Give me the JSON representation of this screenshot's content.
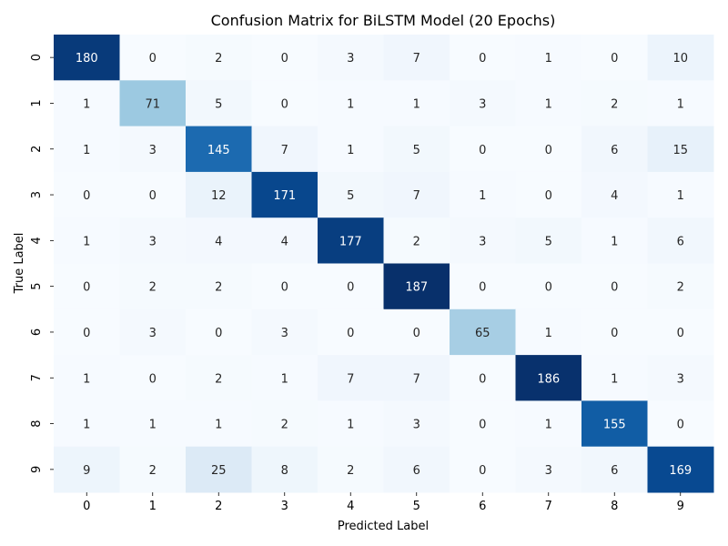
{
  "chart_data": {
    "type": "heatmap",
    "title": "Confusion Matrix for BiLSTM Model (20 Epochs)",
    "xlabel": "Predicted Label",
    "ylabel": "True Label",
    "x_categories": [
      "0",
      "1",
      "2",
      "3",
      "4",
      "5",
      "6",
      "7",
      "8",
      "9"
    ],
    "y_categories": [
      "0",
      "1",
      "2",
      "3",
      "4",
      "5",
      "6",
      "7",
      "8",
      "9"
    ],
    "colormap": "Blues",
    "value_range": [
      0,
      187
    ],
    "colorbar": false,
    "values": [
      [
        180,
        0,
        2,
        0,
        3,
        7,
        0,
        1,
        0,
        10
      ],
      [
        1,
        71,
        5,
        0,
        1,
        1,
        3,
        1,
        2,
        1
      ],
      [
        1,
        3,
        145,
        7,
        1,
        5,
        0,
        0,
        6,
        15
      ],
      [
        0,
        0,
        12,
        171,
        5,
        7,
        1,
        0,
        4,
        1
      ],
      [
        1,
        3,
        4,
        4,
        177,
        2,
        3,
        5,
        1,
        6
      ],
      [
        0,
        2,
        2,
        0,
        0,
        187,
        0,
        0,
        0,
        2
      ],
      [
        0,
        3,
        0,
        3,
        0,
        0,
        65,
        1,
        0,
        0
      ],
      [
        1,
        0,
        2,
        1,
        7,
        7,
        0,
        186,
        1,
        3
      ],
      [
        1,
        1,
        1,
        2,
        1,
        3,
        0,
        1,
        155,
        0
      ],
      [
        9,
        2,
        25,
        8,
        2,
        6,
        0,
        3,
        6,
        169
      ]
    ]
  }
}
